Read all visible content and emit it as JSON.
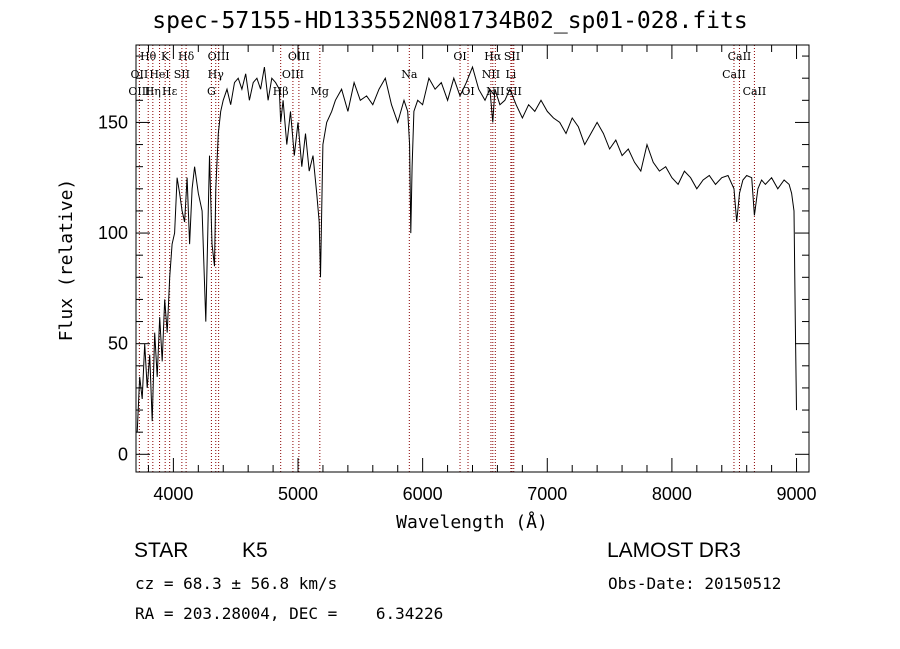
{
  "chart_data": {
    "type": "line",
    "title": "spec-57155-HD133552N081734B02_sp01-028.fits",
    "xlabel": "Wavelength (Å)",
    "ylabel": "Flux (relative)",
    "xlim": [
      3700,
      9100
    ],
    "ylim": [
      -8,
      185
    ],
    "x_ticks": [
      4000,
      5000,
      6000,
      7000,
      8000,
      9000
    ],
    "y_ticks": [
      0,
      50,
      100,
      150
    ],
    "grid": false,
    "series": [
      {
        "name": "Flux",
        "color": "#000000",
        "x": [
          3710,
          3730,
          3750,
          3770,
          3790,
          3810,
          3830,
          3850,
          3870,
          3890,
          3910,
          3930,
          3950,
          3970,
          3990,
          4010,
          4030,
          4050,
          4070,
          4090,
          4110,
          4130,
          4150,
          4170,
          4200,
          4230,
          4260,
          4290,
          4310,
          4330,
          4340,
          4360,
          4380,
          4400,
          4430,
          4460,
          4490,
          4520,
          4550,
          4580,
          4610,
          4640,
          4670,
          4700,
          4730,
          4760,
          4790,
          4820,
          4850,
          4861,
          4880,
          4910,
          4940,
          4970,
          5000,
          5030,
          5060,
          5090,
          5120,
          5150,
          5170,
          5180,
          5200,
          5230,
          5270,
          5300,
          5350,
          5400,
          5450,
          5500,
          5550,
          5600,
          5650,
          5700,
          5750,
          5800,
          5850,
          5880,
          5895,
          5905,
          5915,
          5930,
          5960,
          6000,
          6050,
          6100,
          6150,
          6200,
          6250,
          6300,
          6350,
          6400,
          6450,
          6500,
          6540,
          6563,
          6580,
          6620,
          6660,
          6700,
          6750,
          6800,
          6850,
          6900,
          6950,
          7000,
          7050,
          7100,
          7150,
          7200,
          7250,
          7300,
          7350,
          7400,
          7450,
          7500,
          7550,
          7600,
          7650,
          7700,
          7750,
          7800,
          7850,
          7900,
          7950,
          8000,
          8050,
          8100,
          8150,
          8200,
          8250,
          8300,
          8350,
          8400,
          8450,
          8498,
          8520,
          8542,
          8570,
          8600,
          8640,
          8662,
          8690,
          8720,
          8750,
          8800,
          8850,
          8900,
          8940,
          8960,
          8980,
          8990,
          9000
        ],
        "y": [
          10,
          35,
          25,
          50,
          30,
          45,
          15,
          55,
          35,
          62,
          42,
          70,
          55,
          80,
          95,
          100,
          125,
          118,
          110,
          105,
          125,
          95,
          120,
          130,
          118,
          110,
          60,
          135,
          95,
          85,
          120,
          145,
          155,
          160,
          165,
          158,
          168,
          170,
          165,
          172,
          160,
          168,
          170,
          165,
          175,
          160,
          170,
          168,
          165,
          150,
          160,
          140,
          155,
          135,
          150,
          130,
          145,
          128,
          135,
          118,
          105,
          80,
          140,
          150,
          155,
          160,
          165,
          155,
          168,
          160,
          162,
          158,
          165,
          170,
          158,
          150,
          160,
          155,
          140,
          100,
          130,
          155,
          160,
          158,
          170,
          165,
          168,
          160,
          170,
          162,
          168,
          175,
          165,
          160,
          165,
          150,
          165,
          158,
          160,
          165,
          158,
          152,
          158,
          155,
          160,
          155,
          152,
          150,
          145,
          152,
          148,
          140,
          145,
          150,
          145,
          138,
          142,
          135,
          138,
          132,
          128,
          140,
          132,
          128,
          130,
          125,
          122,
          128,
          125,
          120,
          124,
          126,
          122,
          125,
          126,
          120,
          105,
          118,
          124,
          126,
          125,
          108,
          120,
          124,
          122,
          125,
          120,
          124,
          122,
          118,
          110,
          60,
          20
        ]
      }
    ],
    "line_marks": [
      {
        "label": "Hθ",
        "x": 3798,
        "row": 1
      },
      {
        "label": "OII",
        "x": 3727,
        "row": 2
      },
      {
        "label": "OIII",
        "x": 3727,
        "row": 3
      },
      {
        "label": "K",
        "x": 3934,
        "row": 1
      },
      {
        "label": "HeI",
        "x": 3889,
        "row": 2
      },
      {
        "label": "Hη",
        "x": 3835,
        "row": 3
      },
      {
        "label": "Hε",
        "x": 3970,
        "row": 3
      },
      {
        "label": "SII",
        "x": 4068,
        "row": 2
      },
      {
        "label": "Hδ",
        "x": 4102,
        "row": 1
      },
      {
        "label": "OIII",
        "x": 4363,
        "row": 1
      },
      {
        "label": "Hγ",
        "x": 4340,
        "row": 2
      },
      {
        "label": "G",
        "x": 4305,
        "row": 3
      },
      {
        "label": "OIII",
        "x": 5007,
        "row": 1
      },
      {
        "label": "OIII",
        "x": 4959,
        "row": 2
      },
      {
        "label": "Hβ",
        "x": 4861,
        "row": 3
      },
      {
        "label": "Mg",
        "x": 5175,
        "row": 3
      },
      {
        "label": "Na",
        "x": 5893,
        "row": 2
      },
      {
        "label": "OI",
        "x": 6300,
        "row": 1
      },
      {
        "label": "OI",
        "x": 6364,
        "row": 3
      },
      {
        "label": "Hα",
        "x": 6563,
        "row": 1
      },
      {
        "label": "SII",
        "x": 6717,
        "row": 1
      },
      {
        "label": "NII",
        "x": 6548,
        "row": 2
      },
      {
        "label": "Li",
        "x": 6708,
        "row": 2
      },
      {
        "label": "NII",
        "x": 6583,
        "row": 3
      },
      {
        "label": "SII",
        "x": 6731,
        "row": 3
      },
      {
        "label": "CaII",
        "x": 8542,
        "row": 1
      },
      {
        "label": "CaII",
        "x": 8498,
        "row": 2
      },
      {
        "label": "CaII",
        "x": 8662,
        "row": 3
      }
    ]
  },
  "info": {
    "object_class": "STAR",
    "subclass": "K5",
    "survey": "LAMOST DR3",
    "redshift": "cz = 68.3 ± 56.8 km/s",
    "obs_date": "Obs-Date: 20150512",
    "coords": "RA = 203.28004, DEC =    6.34226"
  },
  "colors": {
    "spectrum": "#000000",
    "line_marker": "#8b0000",
    "axis": "#000000"
  }
}
